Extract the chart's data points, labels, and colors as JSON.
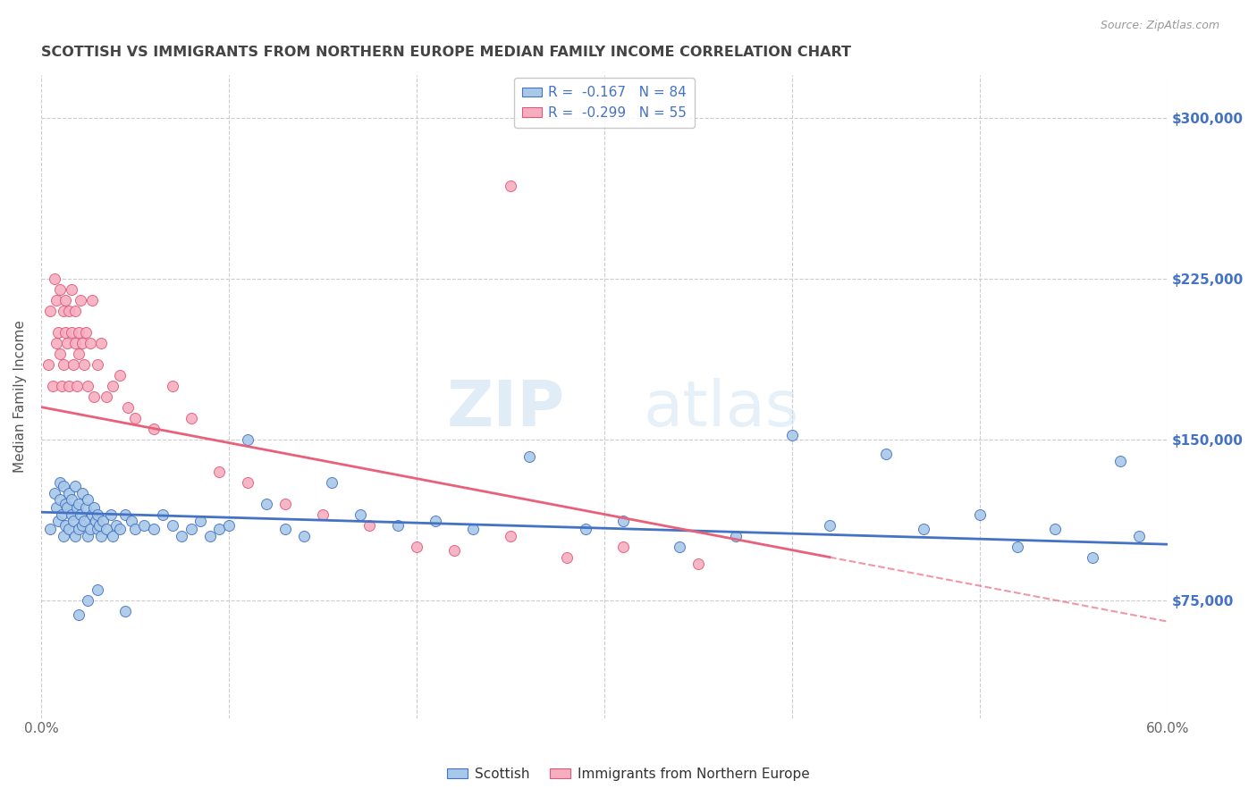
{
  "title": "SCOTTISH VS IMMIGRANTS FROM NORTHERN EUROPE MEDIAN FAMILY INCOME CORRELATION CHART",
  "source": "Source: ZipAtlas.com",
  "ylabel": "Median Family Income",
  "watermark_bold": "ZIP",
  "watermark_light": "atlas",
  "xlim": [
    0.0,
    0.6
  ],
  "ylim": [
    20000,
    320000
  ],
  "yticks": [
    75000,
    150000,
    225000,
    300000
  ],
  "yticklabels": [
    "$75,000",
    "$150,000",
    "$225,000",
    "$300,000"
  ],
  "scottish_color": "#a8c8e8",
  "immigrants_color": "#f5aec0",
  "scottish_edge_color": "#4472c4",
  "immigrants_edge_color": "#e05878",
  "scottish_line_color": "#4472c4",
  "immigrants_line_color": "#e8607a",
  "scottish_R": -0.167,
  "scottish_N": 84,
  "immigrants_R": -0.299,
  "immigrants_N": 55,
  "legend_label_scottish": "Scottish",
  "legend_label_immigrants": "Immigrants from Northern Europe",
  "background_color": "#ffffff",
  "grid_color": "#cccccc",
  "title_color": "#444444",
  "axis_label_color": "#555555",
  "right_tick_color": "#4472c4",
  "scot_line_x0": 0.0,
  "scot_line_x1": 0.6,
  "scot_line_y0": 116000,
  "scot_line_y1": 101000,
  "imm_line_solid_x0": 0.0,
  "imm_line_solid_x1": 0.42,
  "imm_line_solid_y0": 165000,
  "imm_line_solid_y1": 95000,
  "imm_line_dash_x0": 0.42,
  "imm_line_dash_x1": 0.6,
  "imm_line_dash_y0": 95000,
  "imm_line_dash_y1": 65000,
  "scot_x": [
    0.005,
    0.007,
    0.008,
    0.009,
    0.01,
    0.01,
    0.011,
    0.012,
    0.012,
    0.013,
    0.013,
    0.014,
    0.015,
    0.015,
    0.016,
    0.016,
    0.017,
    0.018,
    0.018,
    0.019,
    0.02,
    0.02,
    0.021,
    0.022,
    0.022,
    0.023,
    0.024,
    0.025,
    0.025,
    0.026,
    0.027,
    0.028,
    0.029,
    0.03,
    0.03,
    0.031,
    0.032,
    0.033,
    0.035,
    0.037,
    0.038,
    0.04,
    0.042,
    0.045,
    0.048,
    0.05,
    0.055,
    0.06,
    0.065,
    0.07,
    0.075,
    0.08,
    0.085,
    0.09,
    0.095,
    0.1,
    0.11,
    0.12,
    0.13,
    0.14,
    0.155,
    0.17,
    0.19,
    0.21,
    0.23,
    0.26,
    0.29,
    0.31,
    0.34,
    0.37,
    0.4,
    0.42,
    0.45,
    0.47,
    0.5,
    0.52,
    0.54,
    0.56,
    0.575,
    0.585,
    0.02,
    0.025,
    0.03,
    0.045
  ],
  "scot_y": [
    108000,
    125000,
    118000,
    112000,
    130000,
    122000,
    115000,
    128000,
    105000,
    120000,
    110000,
    118000,
    125000,
    108000,
    122000,
    115000,
    112000,
    128000,
    105000,
    118000,
    120000,
    108000,
    115000,
    110000,
    125000,
    112000,
    118000,
    105000,
    122000,
    108000,
    115000,
    118000,
    112000,
    108000,
    115000,
    110000,
    105000,
    112000,
    108000,
    115000,
    105000,
    110000,
    108000,
    115000,
    112000,
    108000,
    110000,
    108000,
    115000,
    110000,
    105000,
    108000,
    112000,
    105000,
    108000,
    110000,
    150000,
    120000,
    108000,
    105000,
    130000,
    115000,
    110000,
    112000,
    108000,
    142000,
    108000,
    112000,
    100000,
    105000,
    152000,
    110000,
    143000,
    108000,
    115000,
    100000,
    108000,
    95000,
    140000,
    105000,
    68000,
    75000,
    80000,
    70000
  ],
  "imm_x": [
    0.004,
    0.005,
    0.006,
    0.007,
    0.008,
    0.008,
    0.009,
    0.01,
    0.01,
    0.011,
    0.012,
    0.012,
    0.013,
    0.013,
    0.014,
    0.015,
    0.015,
    0.016,
    0.016,
    0.017,
    0.018,
    0.018,
    0.019,
    0.02,
    0.02,
    0.021,
    0.022,
    0.023,
    0.024,
    0.025,
    0.026,
    0.027,
    0.028,
    0.03,
    0.032,
    0.035,
    0.038,
    0.042,
    0.046,
    0.05,
    0.06,
    0.07,
    0.08,
    0.095,
    0.11,
    0.13,
    0.15,
    0.175,
    0.2,
    0.22,
    0.25,
    0.28,
    0.31,
    0.35,
    0.25
  ],
  "imm_y": [
    185000,
    210000,
    175000,
    225000,
    195000,
    215000,
    200000,
    190000,
    220000,
    175000,
    210000,
    185000,
    200000,
    215000,
    195000,
    210000,
    175000,
    200000,
    220000,
    185000,
    195000,
    210000,
    175000,
    200000,
    190000,
    215000,
    195000,
    185000,
    200000,
    175000,
    195000,
    215000,
    170000,
    185000,
    195000,
    170000,
    175000,
    180000,
    165000,
    160000,
    155000,
    175000,
    160000,
    135000,
    130000,
    120000,
    115000,
    110000,
    100000,
    98000,
    105000,
    95000,
    100000,
    92000,
    268000
  ]
}
